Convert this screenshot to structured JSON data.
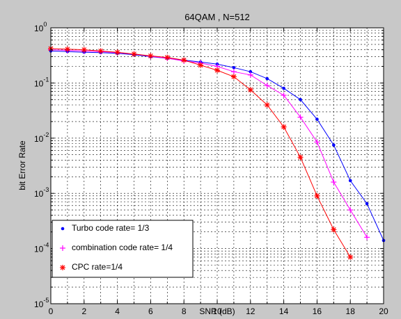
{
  "chart_data": {
    "type": "line",
    "title": "64QAM   ,  N=512",
    "xlabel": "SNR (dB)",
    "ylabel": "bit Error Rate",
    "xlim": [
      0,
      20
    ],
    "ylim": [
      1e-05,
      1
    ],
    "yscale": "log",
    "grid": true,
    "legend_position": "bottom-left",
    "x_ticks": [
      "0",
      "2",
      "4",
      "6",
      "8",
      "10",
      "12",
      "14",
      "16",
      "18",
      "20"
    ],
    "y_ticks": [
      {
        "base": "10",
        "exp": "0"
      },
      {
        "base": "10",
        "exp": "-1"
      },
      {
        "base": "10",
        "exp": "-2"
      },
      {
        "base": "10",
        "exp": "-3"
      },
      {
        "base": "10",
        "exp": "-4"
      },
      {
        "base": "10",
        "exp": "-5"
      }
    ],
    "series": [
      {
        "name": "Turbo code rate= 1/3",
        "color": "#0000ff",
        "marker": "dot",
        "x": [
          0,
          1,
          2,
          3,
          4,
          5,
          6,
          7,
          8,
          9,
          10,
          11,
          12,
          13,
          14,
          15,
          16,
          17,
          18,
          19,
          20
        ],
        "y": [
          0.38,
          0.37,
          0.36,
          0.355,
          0.345,
          0.325,
          0.3,
          0.28,
          0.26,
          0.24,
          0.22,
          0.19,
          0.16,
          0.12,
          0.08,
          0.05,
          0.022,
          0.0075,
          0.0017,
          0.00065,
          0.00014
        ]
      },
      {
        "name": "combination code rate= 1/4",
        "color": "#ff00ff",
        "marker": "plus",
        "x": [
          0,
          1,
          2,
          3,
          4,
          5,
          6,
          7,
          8,
          9,
          10,
          11,
          12,
          13,
          14,
          15,
          16,
          17,
          18,
          19
        ],
        "y": [
          0.4,
          0.39,
          0.38,
          0.37,
          0.355,
          0.335,
          0.305,
          0.28,
          0.25,
          0.23,
          0.2,
          0.16,
          0.14,
          0.09,
          0.06,
          0.024,
          0.0085,
          0.0016,
          0.0005,
          0.00016
        ]
      },
      {
        "name": "CPC   rate=1/4",
        "color": "#ff0000",
        "marker": "star",
        "x": [
          0,
          1,
          2,
          3,
          4,
          5,
          6,
          7,
          8,
          9,
          10,
          11,
          12,
          13,
          14,
          15,
          16,
          17,
          18
        ],
        "y": [
          0.42,
          0.41,
          0.4,
          0.38,
          0.36,
          0.335,
          0.31,
          0.29,
          0.26,
          0.21,
          0.17,
          0.13,
          0.075,
          0.04,
          0.016,
          0.0045,
          0.0009,
          0.00022,
          7e-05
        ]
      }
    ]
  }
}
